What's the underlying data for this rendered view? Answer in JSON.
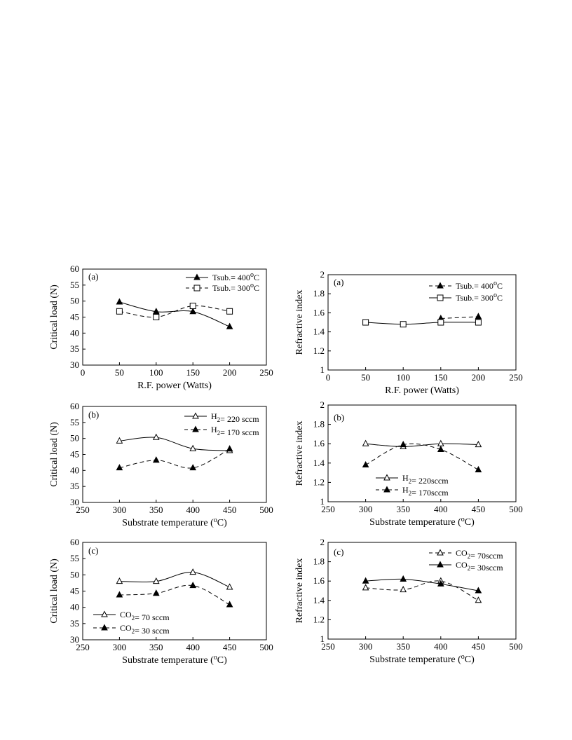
{
  "chart_data": [
    {
      "type": "line",
      "panel": "(a)",
      "xlabel": "R.F. power (Watts)",
      "ylabel": "Critical load (N)",
      "xlim": [
        0,
        250
      ],
      "ylim": [
        30,
        60
      ],
      "xticks": [
        0,
        50,
        100,
        150,
        200,
        250
      ],
      "yticks": [
        30,
        35,
        40,
        45,
        50,
        55,
        60
      ],
      "legend_position": "top-right",
      "series": [
        {
          "name": "Tsub.= 400°C",
          "marker": "filled-triangle",
          "line": "solid",
          "x": [
            50,
            100,
            150,
            200
          ],
          "y": [
            49.7,
            46.7,
            46.7,
            42.0
          ]
        },
        {
          "name": "Tsub.= 300°C",
          "marker": "open-square",
          "line": "dashed",
          "x": [
            50,
            100,
            150,
            200
          ],
          "y": [
            46.8,
            45.0,
            48.5,
            46.8
          ]
        }
      ]
    },
    {
      "type": "line",
      "panel": "(a)",
      "xlabel": "R.F. power (Watts)",
      "ylabel": "Refractive index",
      "xlim": [
        0,
        250
      ],
      "ylim": [
        1,
        2
      ],
      "xticks": [
        0,
        50,
        100,
        150,
        200,
        250
      ],
      "yticks": [
        1,
        1.2,
        1.4,
        1.6,
        1.8,
        2
      ],
      "legend_position": "top-right",
      "series": [
        {
          "name": "Tsub.= 400°C",
          "marker": "filled-triangle",
          "line": "dashed",
          "x": [
            150,
            200
          ],
          "y": [
            1.54,
            1.56
          ]
        },
        {
          "name": "Tsub.= 300°C",
          "marker": "open-square",
          "line": "solid",
          "x": [
            50,
            100,
            150,
            200
          ],
          "y": [
            1.5,
            1.48,
            1.5,
            1.5
          ]
        }
      ]
    },
    {
      "type": "line",
      "panel": "(b)",
      "xlabel": "Substrate temperature (°C)",
      "ylabel": "Critical load (N)",
      "xlim": [
        250,
        500
      ],
      "ylim": [
        30,
        60
      ],
      "xticks": [
        250,
        300,
        350,
        400,
        450,
        500
      ],
      "yticks": [
        30,
        35,
        40,
        45,
        50,
        55,
        60
      ],
      "legend_position": "top-right",
      "series": [
        {
          "name": "H2= 220 sccm",
          "marker": "open-triangle",
          "line": "solid",
          "x": [
            300,
            350,
            400,
            450
          ],
          "y": [
            49.2,
            50.3,
            46.8,
            46.2
          ]
        },
        {
          "name": "H2= 170 sccm",
          "marker": "filled-triangle",
          "line": "dashed",
          "x": [
            300,
            350,
            400,
            450
          ],
          "y": [
            40.8,
            43.2,
            40.8,
            46.7
          ]
        }
      ]
    },
    {
      "type": "line",
      "panel": "(b)",
      "xlabel": "Substrate temperature (°C)",
      "ylabel": "Refractive index",
      "xlim": [
        250,
        500
      ],
      "ylim": [
        1,
        2
      ],
      "xticks": [
        250,
        300,
        350,
        400,
        450,
        500
      ],
      "yticks": [
        1,
        1.2,
        1.4,
        1.6,
        1.8,
        2
      ],
      "legend_position": "bottom-center",
      "series": [
        {
          "name": "H2= 220sccm",
          "marker": "open-triangle",
          "line": "solid",
          "x": [
            300,
            350,
            400,
            450
          ],
          "y": [
            1.6,
            1.57,
            1.6,
            1.59
          ]
        },
        {
          "name": "H2= 170sccm",
          "marker": "filled-triangle",
          "line": "dashed",
          "x": [
            300,
            350,
            400,
            450
          ],
          "y": [
            1.38,
            1.59,
            1.54,
            1.33
          ]
        }
      ]
    },
    {
      "type": "line",
      "panel": "(c)",
      "xlabel": "Substrate temperature (°C)",
      "ylabel": "Critical load (N)",
      "xlim": [
        250,
        500
      ],
      "ylim": [
        30,
        60
      ],
      "xticks": [
        250,
        300,
        350,
        400,
        450,
        500
      ],
      "yticks": [
        30,
        35,
        40,
        45,
        50,
        55,
        60
      ],
      "legend_position": "bottom-left",
      "series": [
        {
          "name": "CO2= 70 sccm",
          "marker": "open-triangle",
          "line": "solid",
          "x": [
            300,
            350,
            400,
            450
          ],
          "y": [
            48.0,
            48.0,
            50.8,
            46.2
          ]
        },
        {
          "name": "CO2= 30 sccm",
          "marker": "filled-triangle",
          "line": "dashed",
          "x": [
            300,
            350,
            400,
            450
          ],
          "y": [
            43.8,
            44.3,
            46.7,
            40.8
          ]
        }
      ]
    },
    {
      "type": "line",
      "panel": "(c)",
      "xlabel": "Substrate temperature (°C)",
      "ylabel": "Refractive index",
      "xlim": [
        250,
        500
      ],
      "ylim": [
        1,
        2
      ],
      "xticks": [
        250,
        300,
        350,
        400,
        450,
        500
      ],
      "yticks": [
        1,
        1.2,
        1.4,
        1.6,
        1.8,
        2
      ],
      "legend_position": "top-right",
      "series": [
        {
          "name": "CO2= 70sccm",
          "marker": "open-triangle",
          "line": "dashed",
          "x": [
            300,
            350,
            400,
            450
          ],
          "y": [
            1.53,
            1.51,
            1.6,
            1.4
          ]
        },
        {
          "name": "CO2= 30sccm",
          "marker": "filled-triangle",
          "line": "solid",
          "x": [
            300,
            350,
            400,
            450
          ],
          "y": [
            1.6,
            1.62,
            1.57,
            1.5
          ]
        }
      ]
    }
  ]
}
